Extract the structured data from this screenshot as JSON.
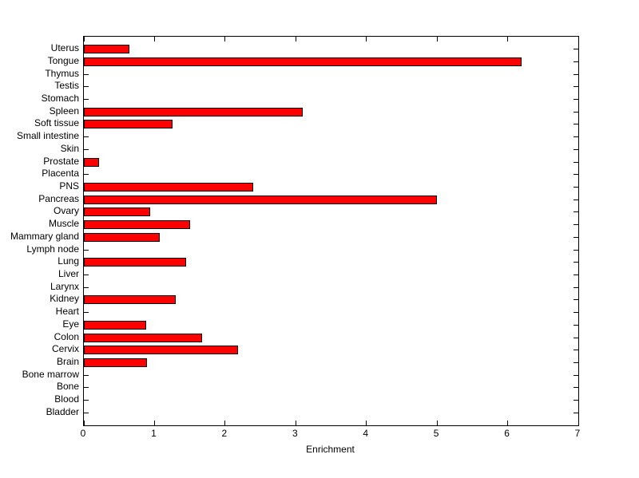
{
  "figure": {
    "background": "#ffffff"
  },
  "chart_data": {
    "type": "bar",
    "orientation": "horizontal",
    "title": "",
    "xlabel": "Enrichment",
    "ylabel": "",
    "xlim": [
      0,
      7
    ],
    "xticks": [
      0,
      1,
      2,
      3,
      4,
      5,
      6,
      7
    ],
    "grid": false,
    "legend": null,
    "bar_color": "#ff0000",
    "bar_edge_color": "#000000",
    "axis_color": "#000000",
    "categories": [
      "Uterus",
      "Tongue",
      "Thymus",
      "Testis",
      "Stomach",
      "Spleen",
      "Soft tissue",
      "Small intestine",
      "Skin",
      "Prostate",
      "Placenta",
      "PNS",
      "Pancreas",
      "Ovary",
      "Muscle",
      "Mammary gland",
      "Lymph node",
      "Lung",
      "Liver",
      "Larynx",
      "Kidney",
      "Heart",
      "Eye",
      "Colon",
      "Cervix",
      "Brain",
      "Bone marrow",
      "Bone",
      "Blood",
      "Bladder"
    ],
    "values": [
      0.65,
      6.2,
      0,
      0,
      0,
      3.1,
      1.26,
      0,
      0,
      0.22,
      0,
      2.4,
      5.0,
      0.94,
      1.5,
      1.07,
      0,
      1.45,
      0,
      0,
      1.3,
      0,
      0.88,
      1.67,
      2.18,
      0.89,
      0,
      0,
      0,
      0
    ]
  }
}
